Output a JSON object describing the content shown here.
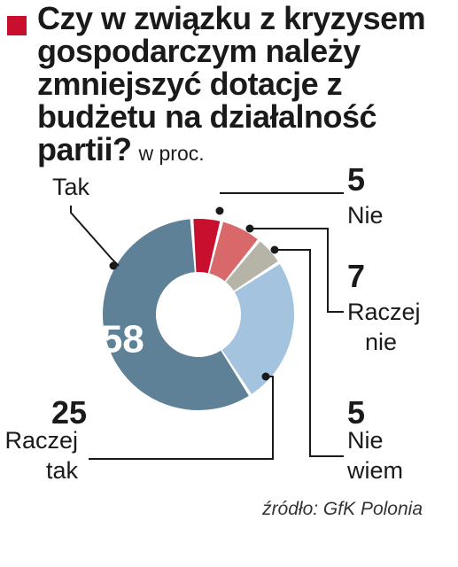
{
  "title": "Czy w związku z kryzysem gospodarczym należy zmniejszyć dotacje z budżetu na działalność partii?",
  "unit": "w proc.",
  "source": "źródło: GfK Polonia",
  "chart_data": {
    "type": "pie",
    "title": "Czy w związku z kryzysem gospodarczym należy zmniejszyć dotacje z budżetu na działalność partii?",
    "unit": "w proc.",
    "series": [
      {
        "name": "Nie",
        "value": 5,
        "color": "#c8102e"
      },
      {
        "name": "Raczej nie",
        "value": 7,
        "color": "#d9686b"
      },
      {
        "name": "Nie wiem",
        "value": 5,
        "color": "#b5b4a7"
      },
      {
        "name": "Raczej tak",
        "value": 25,
        "color": "#a3c3de"
      },
      {
        "name": "Tak",
        "value": 58,
        "color": "#5f8198"
      }
    ]
  }
}
